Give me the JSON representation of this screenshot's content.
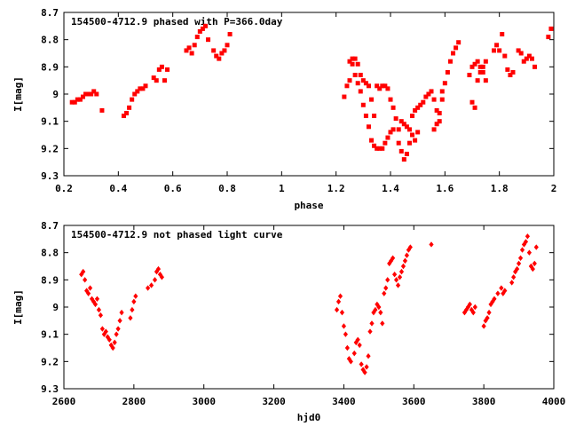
{
  "chart_data": [
    {
      "type": "scatter",
      "title": "154500-4712.9 phased with P=366.0day",
      "xlabel": "phase",
      "ylabel": "I[mag]",
      "xlim": [
        0.2,
        2.0
      ],
      "ylim": [
        8.7,
        9.3
      ],
      "y_inverted": true,
      "x_ticks": [
        "0.2",
        "0.4",
        "0.6",
        "0.8",
        "1",
        "1.2",
        "1.4",
        "1.6",
        "1.8",
        "2"
      ],
      "y_ticks": [
        "8.7",
        "8.8",
        "8.9",
        "9",
        "9.1",
        "9.2",
        "9.3"
      ],
      "marker": "filled-square",
      "color": "#ff0000",
      "points": [
        [
          0.23,
          9.03
        ],
        [
          0.24,
          9.03
        ],
        [
          0.25,
          9.02
        ],
        [
          0.26,
          9.02
        ],
        [
          0.27,
          9.01
        ],
        [
          0.28,
          9.0
        ],
        [
          0.29,
          9.0
        ],
        [
          0.3,
          9.0
        ],
        [
          0.31,
          8.99
        ],
        [
          0.32,
          9.0
        ],
        [
          0.34,
          9.06
        ],
        [
          0.42,
          9.08
        ],
        [
          0.43,
          9.07
        ],
        [
          0.44,
          9.05
        ],
        [
          0.45,
          9.02
        ],
        [
          0.46,
          9.0
        ],
        [
          0.47,
          8.99
        ],
        [
          0.48,
          8.98
        ],
        [
          0.49,
          8.98
        ],
        [
          0.5,
          8.97
        ],
        [
          0.53,
          8.94
        ],
        [
          0.54,
          8.95
        ],
        [
          0.55,
          8.91
        ],
        [
          0.56,
          8.9
        ],
        [
          0.57,
          8.95
        ],
        [
          0.58,
          8.91
        ],
        [
          0.65,
          8.84
        ],
        [
          0.66,
          8.83
        ],
        [
          0.67,
          8.85
        ],
        [
          0.68,
          8.82
        ],
        [
          0.69,
          8.79
        ],
        [
          0.7,
          8.77
        ],
        [
          0.71,
          8.76
        ],
        [
          0.72,
          8.75
        ],
        [
          0.73,
          8.8
        ],
        [
          0.75,
          8.84
        ],
        [
          0.76,
          8.86
        ],
        [
          0.77,
          8.87
        ],
        [
          0.78,
          8.85
        ],
        [
          0.79,
          8.84
        ],
        [
          0.8,
          8.82
        ],
        [
          0.81,
          8.78
        ],
        [
          1.23,
          9.01
        ],
        [
          1.24,
          8.97
        ],
        [
          1.25,
          8.95
        ],
        [
          1.26,
          8.89
        ],
        [
          1.27,
          8.93
        ],
        [
          1.28,
          8.96
        ],
        [
          1.29,
          8.99
        ],
        [
          1.3,
          9.04
        ],
        [
          1.31,
          9.08
        ],
        [
          1.32,
          9.12
        ],
        [
          1.25,
          8.88
        ],
        [
          1.26,
          8.87
        ],
        [
          1.27,
          8.87
        ],
        [
          1.28,
          8.89
        ],
        [
          1.29,
          8.93
        ],
        [
          1.3,
          8.95
        ],
        [
          1.31,
          8.96
        ],
        [
          1.32,
          8.97
        ],
        [
          1.33,
          9.02
        ],
        [
          1.34,
          9.08
        ],
        [
          1.33,
          9.17
        ],
        [
          1.34,
          9.19
        ],
        [
          1.35,
          9.2
        ],
        [
          1.36,
          9.2
        ],
        [
          1.37,
          9.2
        ],
        [
          1.38,
          9.18
        ],
        [
          1.39,
          9.16
        ],
        [
          1.4,
          9.14
        ],
        [
          1.41,
          9.13
        ],
        [
          1.35,
          8.97
        ],
        [
          1.36,
          8.98
        ],
        [
          1.37,
          8.97
        ],
        [
          1.38,
          8.97
        ],
        [
          1.39,
          8.98
        ],
        [
          1.4,
          9.02
        ],
        [
          1.41,
          9.05
        ],
        [
          1.42,
          9.09
        ],
        [
          1.43,
          9.13
        ],
        [
          1.43,
          9.18
        ],
        [
          1.44,
          9.21
        ],
        [
          1.45,
          9.24
        ],
        [
          1.46,
          9.22
        ],
        [
          1.47,
          9.18
        ],
        [
          1.48,
          9.15
        ],
        [
          1.49,
          9.17
        ],
        [
          1.5,
          9.14
        ],
        [
          1.44,
          9.1
        ],
        [
          1.45,
          9.11
        ],
        [
          1.46,
          9.12
        ],
        [
          1.47,
          9.13
        ],
        [
          1.48,
          9.08
        ],
        [
          1.49,
          9.06
        ],
        [
          1.5,
          9.05
        ],
        [
          1.51,
          9.04
        ],
        [
          1.52,
          9.03
        ],
        [
          1.53,
          9.01
        ],
        [
          1.54,
          9.0
        ],
        [
          1.55,
          8.99
        ],
        [
          1.56,
          9.02
        ],
        [
          1.57,
          9.06
        ],
        [
          1.58,
          9.1
        ],
        [
          1.59,
          9.02
        ],
        [
          1.56,
          9.13
        ],
        [
          1.57,
          9.11
        ],
        [
          1.58,
          9.07
        ],
        [
          1.59,
          8.99
        ],
        [
          1.6,
          8.96
        ],
        [
          1.61,
          8.92
        ],
        [
          1.62,
          8.88
        ],
        [
          1.63,
          8.85
        ],
        [
          1.64,
          8.83
        ],
        [
          1.65,
          8.81
        ],
        [
          1.69,
          8.93
        ],
        [
          1.7,
          8.9
        ],
        [
          1.71,
          8.89
        ],
        [
          1.72,
          8.88
        ],
        [
          1.73,
          8.9
        ],
        [
          1.74,
          8.92
        ],
        [
          1.75,
          8.95
        ],
        [
          1.7,
          9.03
        ],
        [
          1.71,
          9.05
        ],
        [
          1.72,
          8.95
        ],
        [
          1.73,
          8.92
        ],
        [
          1.74,
          8.9
        ],
        [
          1.75,
          8.88
        ],
        [
          1.78,
          8.84
        ],
        [
          1.79,
          8.82
        ],
        [
          1.8,
          8.84
        ],
        [
          1.81,
          8.78
        ],
        [
          1.82,
          8.86
        ],
        [
          1.83,
          8.91
        ],
        [
          1.84,
          8.93
        ],
        [
          1.85,
          8.92
        ],
        [
          1.87,
          8.84
        ],
        [
          1.88,
          8.85
        ],
        [
          1.89,
          8.88
        ],
        [
          1.9,
          8.87
        ],
        [
          1.91,
          8.86
        ],
        [
          1.92,
          8.87
        ],
        [
          1.93,
          8.9
        ],
        [
          1.98,
          8.79
        ],
        [
          1.99,
          8.76
        ]
      ]
    },
    {
      "type": "scatter",
      "title": "154500-4712.9 not phased light curve",
      "xlabel": "hjd0",
      "ylabel": "I[mag]",
      "xlim": [
        2600,
        4000
      ],
      "ylim": [
        8.7,
        9.3
      ],
      "y_inverted": true,
      "x_ticks": [
        "2600",
        "2800",
        "3000",
        "3200",
        "3400",
        "3600",
        "3800",
        "4000"
      ],
      "y_ticks": [
        "8.7",
        "8.8",
        "8.9",
        "9",
        "9.1",
        "9.2",
        "9.3"
      ],
      "marker": "diamond",
      "color": "#ff0000",
      "points": [
        [
          2650,
          8.88
        ],
        [
          2655,
          8.87
        ],
        [
          2660,
          8.9
        ],
        [
          2665,
          8.94
        ],
        [
          2670,
          8.95
        ],
        [
          2675,
          8.93
        ],
        [
          2680,
          8.97
        ],
        [
          2685,
          8.98
        ],
        [
          2690,
          8.99
        ],
        [
          2695,
          8.97
        ],
        [
          2700,
          9.01
        ],
        [
          2705,
          9.03
        ],
        [
          2710,
          9.08
        ],
        [
          2715,
          9.1
        ],
        [
          2720,
          9.09
        ],
        [
          2725,
          9.11
        ],
        [
          2730,
          9.12
        ],
        [
          2735,
          9.14
        ],
        [
          2740,
          9.15
        ],
        [
          2745,
          9.13
        ],
        [
          2750,
          9.1
        ],
        [
          2755,
          9.08
        ],
        [
          2760,
          9.05
        ],
        [
          2765,
          9.02
        ],
        [
          2790,
          9.04
        ],
        [
          2795,
          9.01
        ],
        [
          2800,
          8.98
        ],
        [
          2805,
          8.96
        ],
        [
          2840,
          8.93
        ],
        [
          2850,
          8.92
        ],
        [
          2860,
          8.9
        ],
        [
          2865,
          8.87
        ],
        [
          2870,
          8.86
        ],
        [
          2875,
          8.88
        ],
        [
          2880,
          8.89
        ],
        [
          3380,
          9.01
        ],
        [
          3385,
          8.98
        ],
        [
          3390,
          8.96
        ],
        [
          3395,
          9.02
        ],
        [
          3400,
          9.07
        ],
        [
          3405,
          9.1
        ],
        [
          3410,
          9.15
        ],
        [
          3415,
          9.19
        ],
        [
          3420,
          9.2
        ],
        [
          3430,
          9.17
        ],
        [
          3435,
          9.13
        ],
        [
          3440,
          9.12
        ],
        [
          3445,
          9.14
        ],
        [
          3450,
          9.21
        ],
        [
          3455,
          9.23
        ],
        [
          3460,
          9.24
        ],
        [
          3465,
          9.22
        ],
        [
          3470,
          9.18
        ],
        [
          3475,
          9.09
        ],
        [
          3480,
          9.06
        ],
        [
          3485,
          9.02
        ],
        [
          3490,
          9.01
        ],
        [
          3495,
          8.99
        ],
        [
          3500,
          9.0
        ],
        [
          3505,
          9.02
        ],
        [
          3510,
          9.06
        ],
        [
          3515,
          8.95
        ],
        [
          3520,
          8.93
        ],
        [
          3525,
          8.9
        ],
        [
          3530,
          8.84
        ],
        [
          3535,
          8.83
        ],
        [
          3540,
          8.82
        ],
        [
          3545,
          8.88
        ],
        [
          3550,
          8.9
        ],
        [
          3555,
          8.92
        ],
        [
          3560,
          8.89
        ],
        [
          3565,
          8.87
        ],
        [
          3570,
          8.85
        ],
        [
          3575,
          8.83
        ],
        [
          3580,
          8.81
        ],
        [
          3585,
          8.79
        ],
        [
          3590,
          8.78
        ],
        [
          3650,
          8.77
        ],
        [
          3745,
          9.02
        ],
        [
          3750,
          9.01
        ],
        [
          3755,
          9.0
        ],
        [
          3760,
          8.99
        ],
        [
          3765,
          9.01
        ],
        [
          3770,
          9.02
        ],
        [
          3775,
          9.0
        ],
        [
          3800,
          9.07
        ],
        [
          3805,
          9.05
        ],
        [
          3810,
          9.04
        ],
        [
          3815,
          9.02
        ],
        [
          3820,
          8.99
        ],
        [
          3825,
          8.98
        ],
        [
          3830,
          8.97
        ],
        [
          3840,
          8.95
        ],
        [
          3850,
          8.93
        ],
        [
          3855,
          8.95
        ],
        [
          3860,
          8.94
        ],
        [
          3880,
          8.91
        ],
        [
          3885,
          8.89
        ],
        [
          3890,
          8.87
        ],
        [
          3895,
          8.86
        ],
        [
          3900,
          8.84
        ],
        [
          3905,
          8.82
        ],
        [
          3910,
          8.79
        ],
        [
          3915,
          8.77
        ],
        [
          3920,
          8.76
        ],
        [
          3925,
          8.74
        ],
        [
          3930,
          8.8
        ],
        [
          3935,
          8.85
        ],
        [
          3940,
          8.86
        ],
        [
          3945,
          8.84
        ],
        [
          3950,
          8.78
        ]
      ]
    }
  ]
}
